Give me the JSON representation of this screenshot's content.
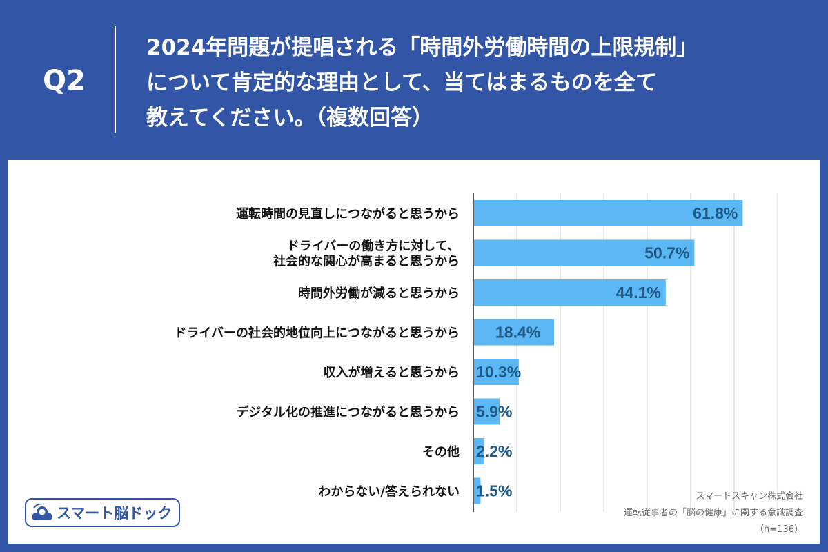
{
  "header": {
    "q_label": "Q2",
    "question_lines": [
      "2024年問題が提唱される「時間外労働時間の上限規制」",
      "について肯定的な理由として、当てはまるものを全て",
      "教えてください。（複数回答）"
    ]
  },
  "chart_data": {
    "type": "bar",
    "orientation": "horizontal",
    "categories": [
      [
        "運転時間の見直しにつながると思うから"
      ],
      [
        "ドライバーの働き方に対して、",
        "社会的な関心が高まると思うから"
      ],
      [
        "時間外労働が減ると思うから"
      ],
      [
        "ドライバーの社会的地位向上につながると思うから"
      ],
      [
        "収入が増えると思うから"
      ],
      [
        "デジタル化の推進につながると思うから"
      ],
      [
        "その他"
      ],
      [
        "わからない/答えられない"
      ]
    ],
    "values": [
      61.8,
      50.7,
      44.1,
      18.4,
      10.3,
      5.9,
      2.2,
      1.5
    ],
    "value_labels": [
      "61.8%",
      "50.7%",
      "44.1%",
      "18.4%",
      "10.3%",
      "5.9%",
      "2.2%",
      "1.5%"
    ],
    "xlim": [
      0,
      70
    ],
    "grid": true,
    "bar_color": "#5bb8f5",
    "label_color": "#1f5a86"
  },
  "logo": {
    "text": "スマート脳ドック"
  },
  "source": {
    "company": "スマートスキャン株式会社",
    "survey": "運転従事者の「脳の健康」に関する意識調査",
    "n": "（n=136）"
  },
  "colors": {
    "background": "#3355a6",
    "panel": "#ffffff"
  }
}
